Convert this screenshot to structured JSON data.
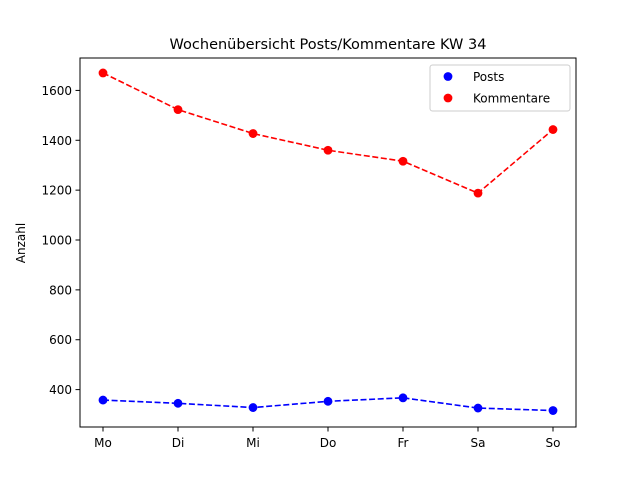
{
  "chart_data": {
    "type": "line",
    "title": "Wochenübersicht Posts/Kommentare KW 34",
    "xlabel": "",
    "ylabel": "Anzahl",
    "categories": [
      "Mo",
      "Di",
      "Mi",
      "Do",
      "Fr",
      "Sa",
      "So"
    ],
    "ylim": [
      250,
      1730
    ],
    "yticks": [
      400,
      600,
      800,
      1000,
      1200,
      1400,
      1600
    ],
    "grid": false,
    "legend_position": "top-right",
    "line_style": "dashed",
    "marker": "circle",
    "series": [
      {
        "name": "Posts",
        "color": "#0000ff",
        "values": [
          358,
          345,
          328,
          353,
          367,
          326,
          316
        ]
      },
      {
        "name": "Kommentare",
        "color": "#ff0000",
        "values": [
          1670,
          1523,
          1427,
          1360,
          1316,
          1188,
          1443
        ]
      }
    ]
  }
}
